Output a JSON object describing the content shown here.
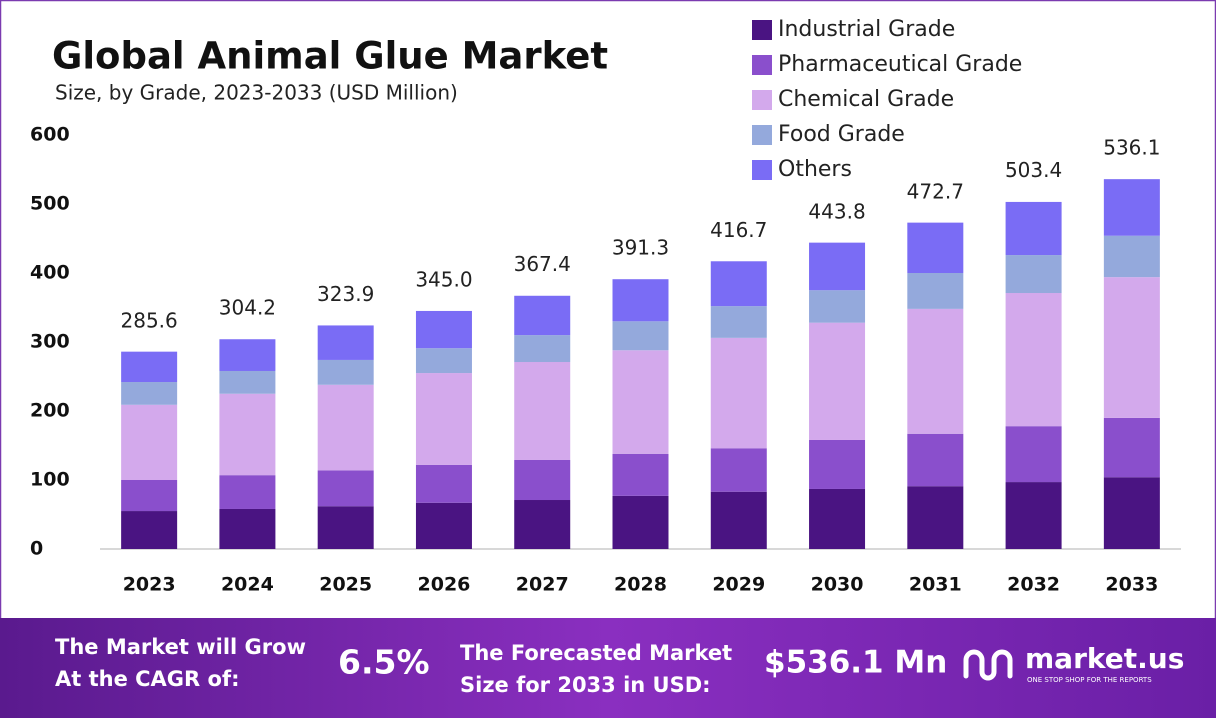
{
  "chart_data": {
    "type": "stacked-bar",
    "title": "Global Animal Glue Market",
    "subtitle": "Size, by Grade, 2023-2033 (USD Million)",
    "categories": [
      "2023",
      "2024",
      "2025",
      "2026",
      "2027",
      "2028",
      "2029",
      "2030",
      "2031",
      "2032",
      "2033"
    ],
    "series": [
      {
        "name": "Industrial Grade",
        "color": "#4a1482",
        "values": [
          55,
          58,
          62,
          67,
          71,
          77,
          83,
          87,
          91,
          97,
          104
        ]
      },
      {
        "name": "Pharmaceutical Grade",
        "color": "#8a4fcc",
        "values": [
          45,
          49,
          52,
          55,
          58,
          61,
          63,
          71,
          76,
          81,
          86
        ]
      },
      {
        "name": "Chemical Grade",
        "color": "#d3a9ec",
        "values": [
          109,
          118,
          124,
          133,
          142,
          150,
          160,
          170,
          181,
          193,
          204
        ]
      },
      {
        "name": "Food Grade",
        "color": "#94a9dc",
        "values": [
          33,
          33,
          36,
          36,
          39,
          42,
          46,
          47,
          52,
          55,
          60
        ]
      },
      {
        "name": "Others",
        "color": "#7a6cf5",
        "values": [
          44,
          46,
          50,
          54,
          57,
          61,
          65,
          69,
          73,
          77,
          82
        ]
      }
    ],
    "totals": {
      "values": [
        285.6,
        304.2,
        323.9,
        345.0,
        367.4,
        391.3,
        416.7,
        443.8,
        472.7,
        503.4,
        536.1
      ],
      "value_labels": [
        "285.6",
        "304.2",
        "323.9",
        "345.0",
        "367.4",
        "391.3",
        "416.7",
        "443.8",
        "472.7",
        "503.4",
        "536.1"
      ]
    },
    "ylim": [
      0,
      600
    ],
    "yticks": [
      0,
      100,
      200,
      300,
      400,
      500,
      600
    ],
    "grid": false
  },
  "footer": {
    "cagr_label": [
      "The Market will Grow",
      "At the CAGR of:"
    ],
    "cagr": "6.5%",
    "forecast_label": [
      "The Forecasted Market",
      "Size for 2033 in USD:"
    ],
    "forecast": "$536.1 Mn",
    "brand": "market.us",
    "tagline": "ONE STOP SHOP FOR THE REPORTS"
  }
}
